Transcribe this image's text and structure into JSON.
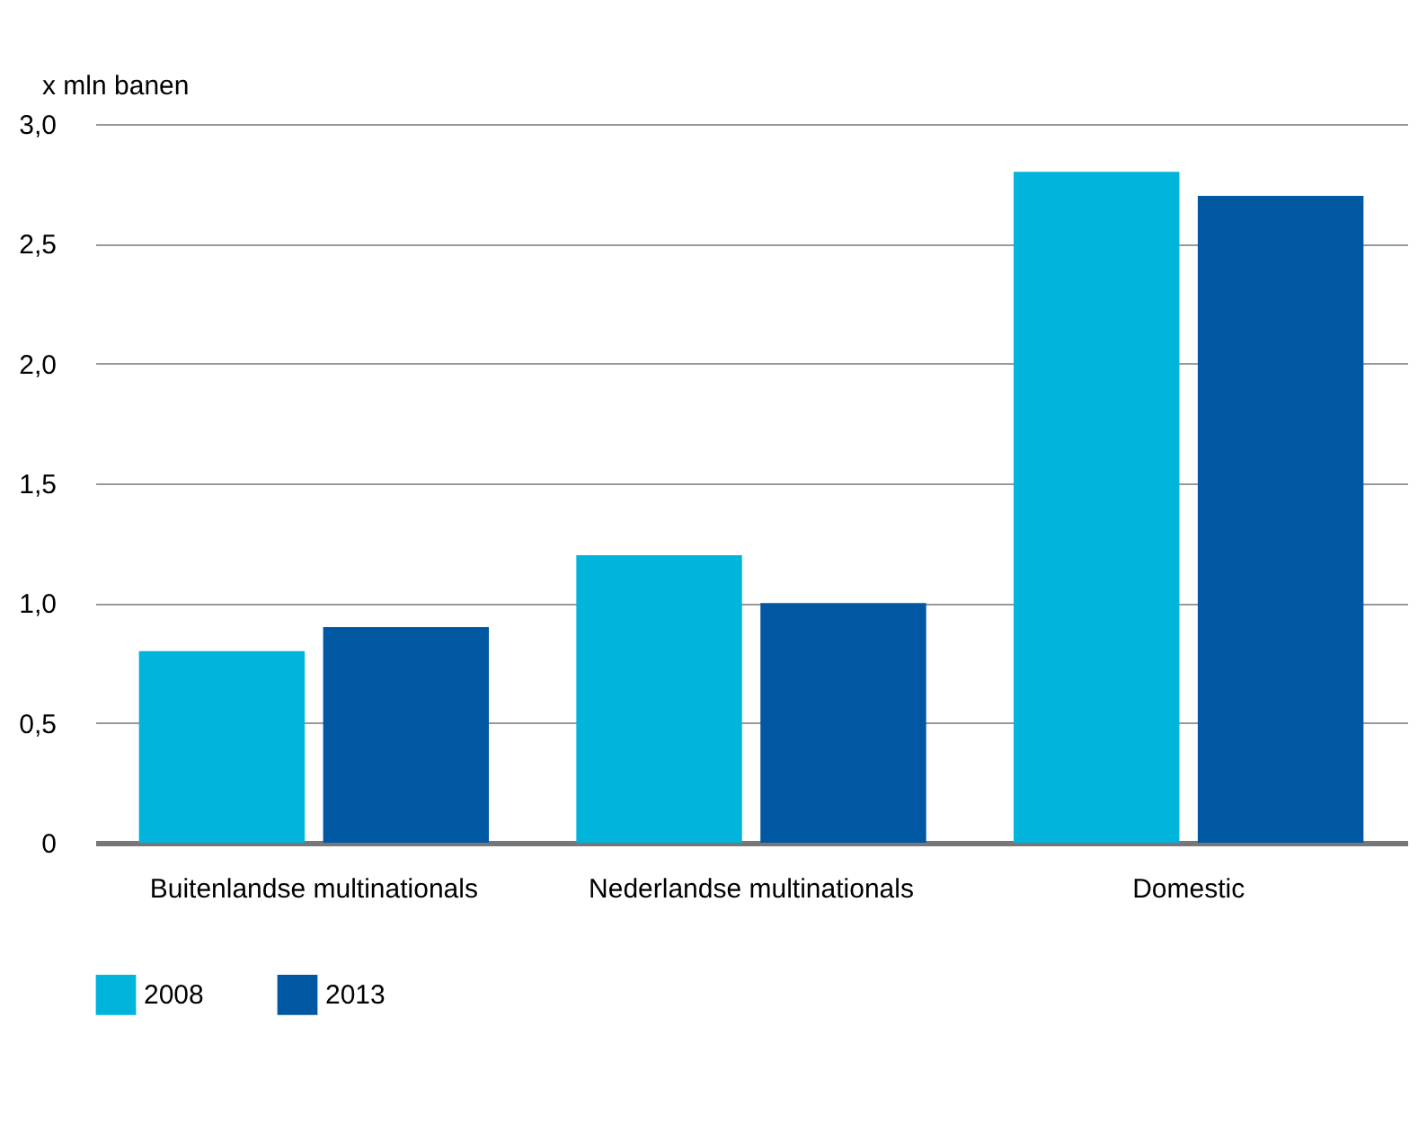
{
  "chart_data": {
    "type": "bar",
    "ylabel": "x mln banen",
    "categories": [
      "Buitenlandse multinationals",
      "Nederlandse multinationals",
      "Domestic"
    ],
    "series": [
      {
        "name": "2008",
        "color": "#00b4dc",
        "values": [
          0.8,
          1.2,
          2.8
        ]
      },
      {
        "name": "2013",
        "color": "#0058a3",
        "values": [
          0.9,
          1.0,
          2.7
        ]
      }
    ],
    "ylim": [
      0,
      3
    ],
    "yticks": [
      {
        "value": 0,
        "label": "0"
      },
      {
        "value": 0.5,
        "label": "0,5"
      },
      {
        "value": 1,
        "label": "1,0"
      },
      {
        "value": 1.5,
        "label": "1,5"
      },
      {
        "value": 2,
        "label": "2,0"
      },
      {
        "value": 2.5,
        "label": "2,5"
      },
      {
        "value": 3,
        "label": "3,0"
      }
    ],
    "grid": "y",
    "legend": "bottom left"
  }
}
